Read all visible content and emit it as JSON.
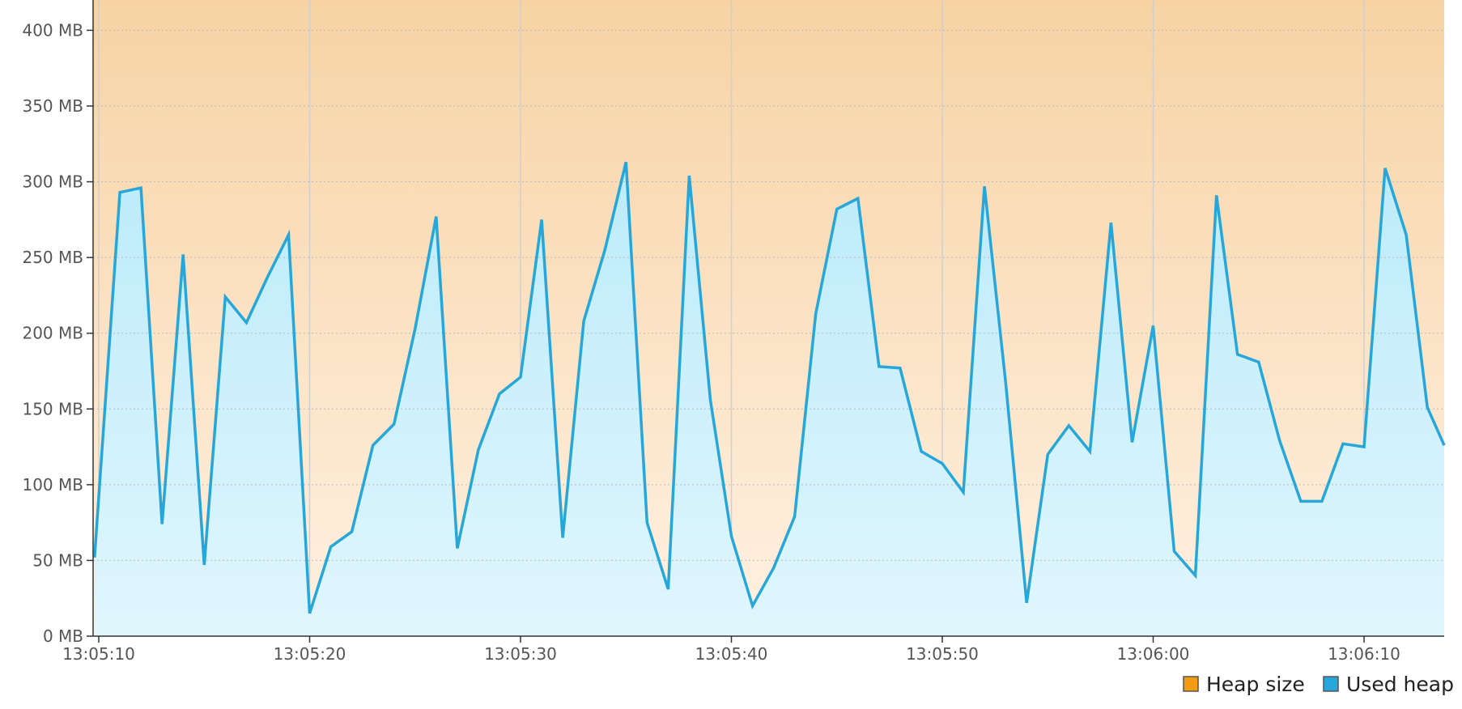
{
  "chart_data": {
    "type": "area",
    "title": "",
    "xlabel": "",
    "ylabel": "",
    "x_ticks": [
      "13:05:10",
      "13:05:20",
      "13:05:30",
      "13:05:40",
      "13:05:50",
      "13:06:00",
      "13:06:10"
    ],
    "y_ticks": [
      "0 MB",
      "50 MB",
      "100 MB",
      "150 MB",
      "200 MB",
      "250 MB",
      "300 MB",
      "350 MB",
      "400 MB"
    ],
    "y_unit": "MB",
    "ylim": [
      0,
      420
    ],
    "grid": true,
    "legend_position": "bottom-right",
    "series": [
      {
        "name": "Heap size",
        "color": "#f39c12",
        "fill_top": "#f7d3a4",
        "fill_bottom": "#fff1e2",
        "values": [
          420
        ]
      },
      {
        "name": "Used heap",
        "color": "#26a6d9",
        "fill_top": "#bcebfa",
        "fill_bottom": "#e0f6fd",
        "x": [
          "13:05:09.8",
          "13:05:11",
          "13:05:12",
          "13:05:13",
          "13:05:14",
          "13:05:15",
          "13:05:16",
          "13:05:17",
          "13:05:18",
          "13:05:19",
          "13:05:20",
          "13:05:21",
          "13:05:22",
          "13:05:23",
          "13:05:24",
          "13:05:25",
          "13:05:26",
          "13:05:27",
          "13:05:28",
          "13:05:29",
          "13:05:30",
          "13:05:31",
          "13:05:32",
          "13:05:33",
          "13:05:34",
          "13:05:35",
          "13:05:36",
          "13:05:37",
          "13:05:38",
          "13:05:39",
          "13:05:40",
          "13:05:41",
          "13:05:42",
          "13:05:43",
          "13:05:44",
          "13:05:45",
          "13:05:46",
          "13:05:47",
          "13:05:48",
          "13:05:49",
          "13:05:50",
          "13:05:51",
          "13:05:52",
          "13:05:53",
          "13:05:54",
          "13:05:55",
          "13:05:56",
          "13:05:57",
          "13:05:58",
          "13:05:59",
          "13:06:00",
          "13:06:01",
          "13:06:02",
          "13:06:03",
          "13:06:04",
          "13:06:05",
          "13:06:06",
          "13:06:07",
          "13:06:08",
          "13:06:09",
          "13:06:10",
          "13:06:11",
          "13:06:12",
          "13:06:13",
          "13:06:14"
        ],
        "values": [
          52,
          293,
          296,
          74,
          252,
          47,
          224,
          207,
          237,
          265,
          15,
          59,
          69,
          126,
          140,
          203,
          277,
          58,
          123,
          160,
          171,
          275,
          65,
          208,
          255,
          313,
          75,
          31,
          304,
          156,
          66,
          20,
          45,
          79,
          213,
          282,
          289,
          178,
          177,
          122,
          114,
          95,
          297,
          168,
          22,
          120,
          139,
          122,
          273,
          128,
          205,
          56,
          40,
          291,
          186,
          181,
          129,
          89,
          89,
          127,
          125,
          309,
          265,
          151,
          126
        ]
      }
    ]
  }
}
